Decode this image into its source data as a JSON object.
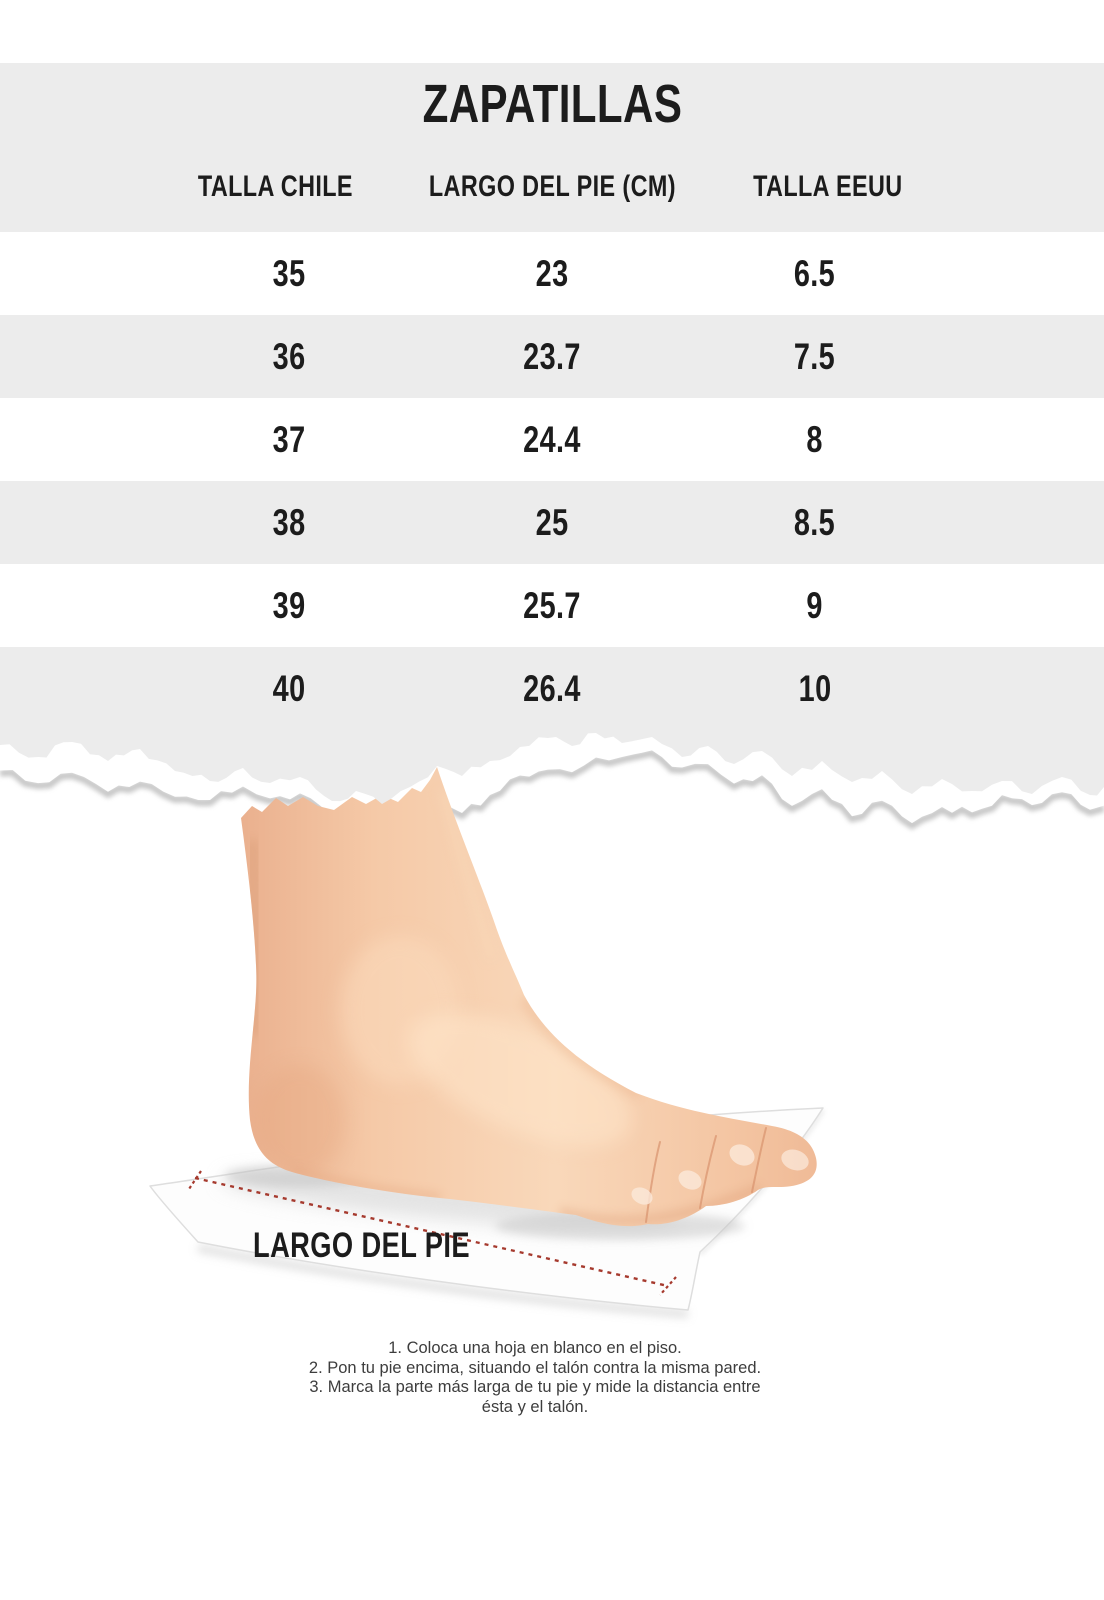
{
  "title": "ZAPATILLAS",
  "table": {
    "headers": [
      "TALLA CHILE",
      "LARGO DEL PIE (CM)",
      "TALLA EEUU"
    ],
    "rows": [
      [
        "35",
        "23",
        "6.5"
      ],
      [
        "36",
        "23.7",
        "7.5"
      ],
      [
        "37",
        "24.4",
        "8"
      ],
      [
        "38",
        "25",
        "8.5"
      ],
      [
        "39",
        "25.7",
        "9"
      ],
      [
        "40",
        "26.4",
        "10"
      ]
    ]
  },
  "foot_diagram": {
    "label": "LARGO DEL PIE"
  },
  "instructions": {
    "lines": [
      "1. Coloca una hoja en blanco en el piso.",
      "2. Pon tu pie encima, situando el talón contra la misma pared.",
      "3. Marca la parte más larga de tu pie y mide la distancia entre",
      "ésta y el talón."
    ]
  },
  "colors": {
    "paper_gray": "#ececec",
    "row_white": "#ffffff",
    "text_black": "#1c1c1c",
    "instructions_text": "#3d3d3d",
    "accent_red": "#a63a2e",
    "skin_base": "#f6cba9",
    "sheet_white": "#fdfdfd"
  }
}
